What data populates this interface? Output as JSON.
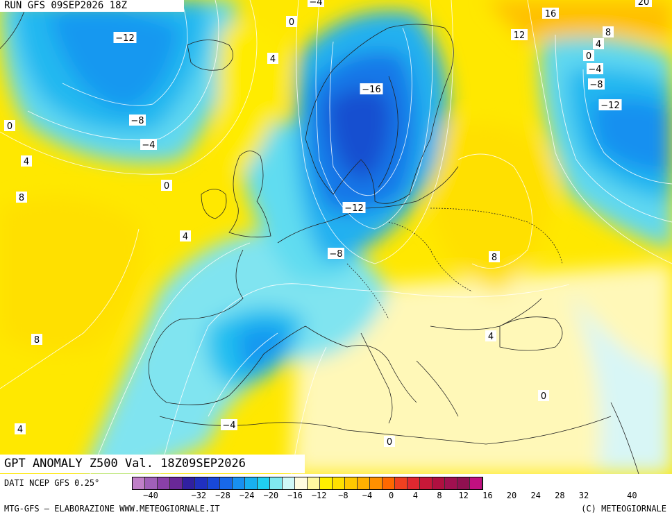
{
  "header": {
    "run_text": "RUN GFS 09SEP2026 18Z"
  },
  "map": {
    "title": "GPT ANOMALY Z500 Val. 18Z09SEP2026",
    "isoline_labels": [
      {
        "text": "-4"
      },
      {
        "text": "0"
      },
      {
        "text": "-12"
      },
      {
        "text": "4"
      },
      {
        "text": "16"
      },
      {
        "text": "20"
      },
      {
        "text": "12"
      },
      {
        "text": "8"
      },
      {
        "text": "4"
      },
      {
        "text": "0"
      },
      {
        "text": "-4"
      },
      {
        "text": "-8"
      },
      {
        "text": "-12"
      },
      {
        "text": "-16"
      },
      {
        "text": "-8"
      },
      {
        "text": "0"
      },
      {
        "text": "-4"
      },
      {
        "text": "4"
      },
      {
        "text": "0"
      },
      {
        "text": "8"
      },
      {
        "text": "-12"
      },
      {
        "text": "4"
      },
      {
        "text": "-8"
      },
      {
        "text": "8"
      },
      {
        "text": "8"
      },
      {
        "text": "4"
      },
      {
        "text": "0"
      },
      {
        "text": "4"
      },
      {
        "text": "-4"
      },
      {
        "text": "0"
      }
    ]
  },
  "legend": {
    "source": "DATI NCEP GFS 0.25°",
    "ticks": [
      "-40",
      "-36",
      "-32",
      "-28",
      "-24",
      "-20",
      "-16",
      "-12",
      "-8",
      "-4",
      "0",
      "4",
      "8",
      "12",
      "16",
      "20",
      "24",
      "28",
      "32",
      "36",
      "40"
    ],
    "visible_ticks": [
      "-40",
      "-32",
      "-28",
      "-24",
      "-20",
      "-16",
      "-12",
      "-8",
      "-4",
      "0",
      "4",
      "8",
      "12",
      "16",
      "20",
      "24",
      "28",
      "32",
      "40"
    ],
    "colors": [
      "#c080c8",
      "#a060b8",
      "#8a40a8",
      "#6a2898",
      "#3020a0",
      "#2030c0",
      "#1848d8",
      "#1868e8",
      "#1890f0",
      "#18b0f0",
      "#20d0f0",
      "#80e8f0",
      "#d0f8f8",
      "#fffce0",
      "#fff8a0",
      "#fff000",
      "#ffe000",
      "#ffc800",
      "#ffb000",
      "#ff9000",
      "#ff6800",
      "#f04020",
      "#e02830",
      "#c81838",
      "#b01040",
      "#a01050",
      "#901050",
      "#c01080"
    ]
  },
  "footer": {
    "left": "MTG-GFS — ELABORAZIONE WWW.METEOGIORNALE.IT",
    "right": "(C) METEOGIORNALE"
  },
  "palette": {
    "deep_blue": "#1860d8",
    "blue": "#1898f0",
    "cyan": "#20c8f0",
    "light_cyan": "#a8ecf4",
    "pale": "#e8fafa",
    "pale_yellow": "#fff8b8",
    "yellow": "#fff000",
    "gold": "#ffd800",
    "orange": "#ffb000"
  }
}
